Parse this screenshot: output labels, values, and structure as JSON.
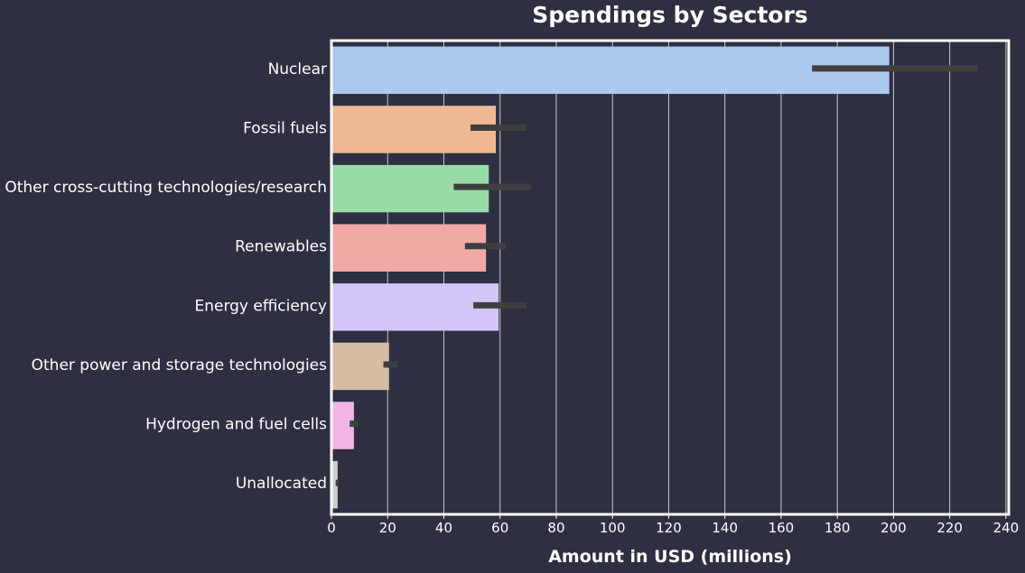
{
  "chart_data": {
    "type": "bar",
    "orientation": "horizontal",
    "title": "Spendings by Sectors",
    "xlabel": "Amount in USD (millions)",
    "ylabel": "",
    "xlim": [
      0,
      241
    ],
    "xticks": [
      0,
      20,
      40,
      60,
      80,
      100,
      120,
      140,
      160,
      180,
      200,
      220,
      240
    ],
    "grid": "vertical",
    "categories": [
      "Nuclear",
      "Fossil fuels",
      "Other cross-cutting technologies/research",
      "Renewables",
      "Energy efficiency",
      "Other power and storage technologies",
      "Hydrogen and fuel cells",
      "Unallocated"
    ],
    "values": [
      198.5,
      58.5,
      56,
      55,
      59.5,
      20.5,
      8,
      2.2
    ],
    "error_bars": [
      [
        171,
        230
      ],
      [
        49.5,
        69.5
      ],
      [
        43.5,
        71
      ],
      [
        47.5,
        62
      ],
      [
        50.5,
        69.5
      ],
      [
        18.5,
        23.5
      ],
      [
        6.5,
        9.5
      ],
      [
        1.5,
        2.5
      ]
    ],
    "colors": [
      "#abc9ed",
      "#f0b892",
      "#98dba7",
      "#f0aaa6",
      "#d2c6f8",
      "#d6bca3",
      "#f2b5e3",
      "#cfcfcf"
    ],
    "error_color": "#3f3f3f",
    "background": "#2e3042",
    "grid_color": "#c8c8c8",
    "frame_color": "#ffffff"
  }
}
